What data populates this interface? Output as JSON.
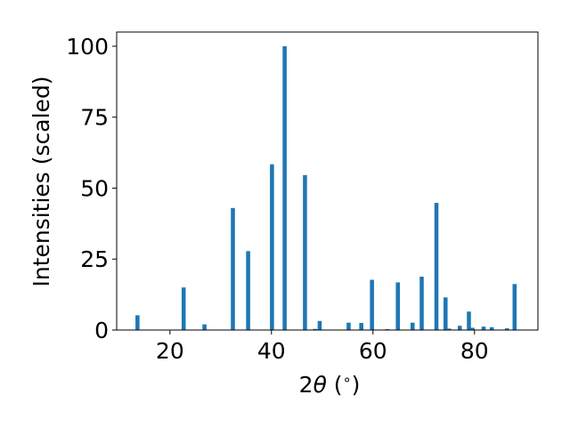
{
  "chart_data": {
    "type": "bar",
    "xlabel_parts": {
      "pre": "2",
      "theta": "θ",
      "open": " (",
      "deg": "∘",
      "close": ")"
    },
    "ylabel": "Intensities (scaled)",
    "xlim": [
      9.5,
      92.5
    ],
    "ylim": [
      0,
      105
    ],
    "x_ticks": [
      20,
      40,
      60,
      80
    ],
    "y_ticks": [
      0,
      25,
      50,
      75,
      100
    ],
    "x_tick_labels": [
      "20",
      "40",
      "60",
      "80"
    ],
    "y_tick_labels": [
      "0",
      "25",
      "50",
      "75",
      "100"
    ],
    "bar_width": 0.8,
    "bar_color": "#1f77b4",
    "grid": false,
    "x": [
      13.6,
      22.7,
      26.8,
      32.4,
      35.4,
      40.1,
      42.6,
      46.6,
      48.6,
      49.5,
      55.2,
      57.7,
      59.8,
      62.8,
      64.9,
      67.8,
      69.6,
      72.5,
      74.3,
      75.0,
      77.1,
      78.9,
      79.6,
      81.8,
      83.4,
      86.4,
      87.9
    ],
    "values": [
      5.2,
      15.0,
      2.0,
      43.0,
      27.8,
      58.4,
      100.0,
      54.6,
      0.4,
      3.2,
      2.6,
      2.5,
      17.7,
      0.3,
      16.8,
      2.6,
      18.8,
      44.8,
      11.5,
      0.5,
      1.5,
      6.5,
      0.8,
      1.2,
      1.0,
      0.6,
      16.2
    ]
  }
}
